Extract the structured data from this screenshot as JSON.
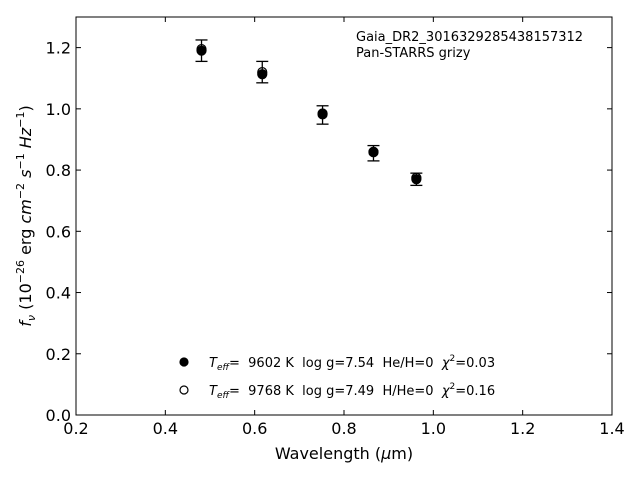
{
  "chart_data": {
    "type": "scatter",
    "xlabel": "Wavelength (μm)",
    "ylabel": "fν (10⁻²⁶ erg cm⁻² s⁻¹ Hz⁻¹)",
    "xlim": [
      0.2,
      1.4
    ],
    "ylim": [
      0.0,
      1.3
    ],
    "xticks": [
      "0.2",
      "0.4",
      "0.6",
      "0.8",
      "1.0",
      "1.2",
      "1.4"
    ],
    "yticks": [
      "0.0",
      "0.2",
      "0.4",
      "0.6",
      "0.8",
      "1.0",
      "1.2"
    ],
    "grid": false,
    "annotation": [
      "Gaia_DR2_3016329285438157312",
      "Pan-STARRS grizy"
    ],
    "observed": {
      "x": [
        0.481,
        0.617,
        0.752,
        0.866,
        0.962
      ],
      "y": [
        1.19,
        1.12,
        0.98,
        0.855,
        0.77
      ],
      "yerr": [
        0.035,
        0.035,
        0.03,
        0.025,
        0.02
      ]
    },
    "series": [
      {
        "name": "Teff= 9602 K log g=7.54 He/H=0 χ²=0.03",
        "marker": "filled-circle",
        "x": [
          0.481,
          0.617,
          0.752,
          0.866,
          0.962
        ],
        "y": [
          1.19,
          1.113,
          0.982,
          0.858,
          0.77
        ]
      },
      {
        "name": "Teff= 9768 K log g=7.49 H/He=0 χ²=0.16",
        "marker": "open-circle",
        "x": [
          0.481,
          0.617,
          0.752,
          0.866,
          0.962
        ],
        "y": [
          1.195,
          1.12,
          0.985,
          0.86,
          0.775
        ]
      }
    ],
    "legend": {
      "placement": "lower-center",
      "entries": [
        {
          "teff_label": "T",
          "teff_sub": "eff",
          "text": "=  9602 K  log g=7.54  He/H=0  ",
          "chi_label": "χ",
          "chi_sup": "2",
          "chi_value": "=0.03"
        },
        {
          "teff_label": "T",
          "teff_sub": "eff",
          "text": "=  9768 K  log g=7.49  H/He=0  ",
          "chi_label": "χ",
          "chi_sup": "2",
          "chi_value": "=0.16"
        }
      ]
    }
  }
}
